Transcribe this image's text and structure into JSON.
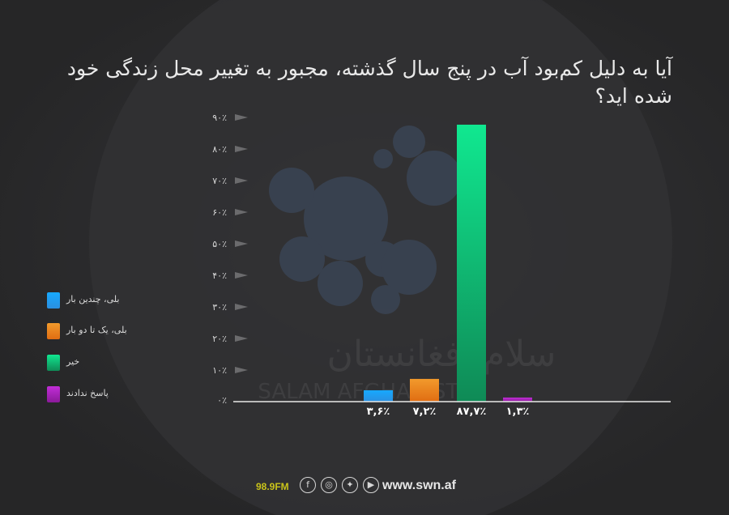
{
  "title": "آیا به دلیل کم‌بود آب در پنج سال گذشته، مجبور به تغییر محل زندگی خود شده اید؟",
  "watermark": {
    "line1": "سلام افغانستان",
    "line2": "SALAM AFGHANISTAN"
  },
  "footer": {
    "fm": "98.9FM",
    "icons": [
      "facebook-icon",
      "instagram-icon",
      "twitter-icon",
      "youtube-icon"
    ],
    "site": "www.swn.af"
  },
  "colors": {
    "axis": "#e8e8e8",
    "tick_marker": "#6b6b6d",
    "tick_label": "#d8d8d8"
  },
  "chart_data": {
    "type": "bar",
    "ylim": [
      0,
      90
    ],
    "y_ticks": [
      0,
      10,
      20,
      30,
      40,
      50,
      60,
      70,
      80,
      90
    ],
    "y_tick_labels": [
      "۰٪",
      "۱۰٪",
      "۲۰٪",
      "۳۰٪",
      "۴۰٪",
      "۵۰٪",
      "۶۰٪",
      "۷۰٪",
      "۸۰٪",
      "۹۰٪"
    ],
    "grid": false,
    "legend_position": "left",
    "categories": [
      "بلی، چندین بار",
      "بلی، یک تا دو بار",
      "خیر",
      "پاسخ ندادند"
    ],
    "values": [
      3.6,
      7.2,
      87.7,
      1.3
    ],
    "value_labels": [
      "۳,۶٪",
      "۷,۲٪",
      "۸۷,۷٪",
      "۱,۳٪"
    ],
    "colors": [
      [
        "#2a8fe0",
        "#17a9ff"
      ],
      [
        "#e06d12",
        "#f29a2c"
      ],
      [
        "#0f8a56",
        "#10e890"
      ],
      [
        "#8a1a99",
        "#c22ed8"
      ]
    ]
  }
}
